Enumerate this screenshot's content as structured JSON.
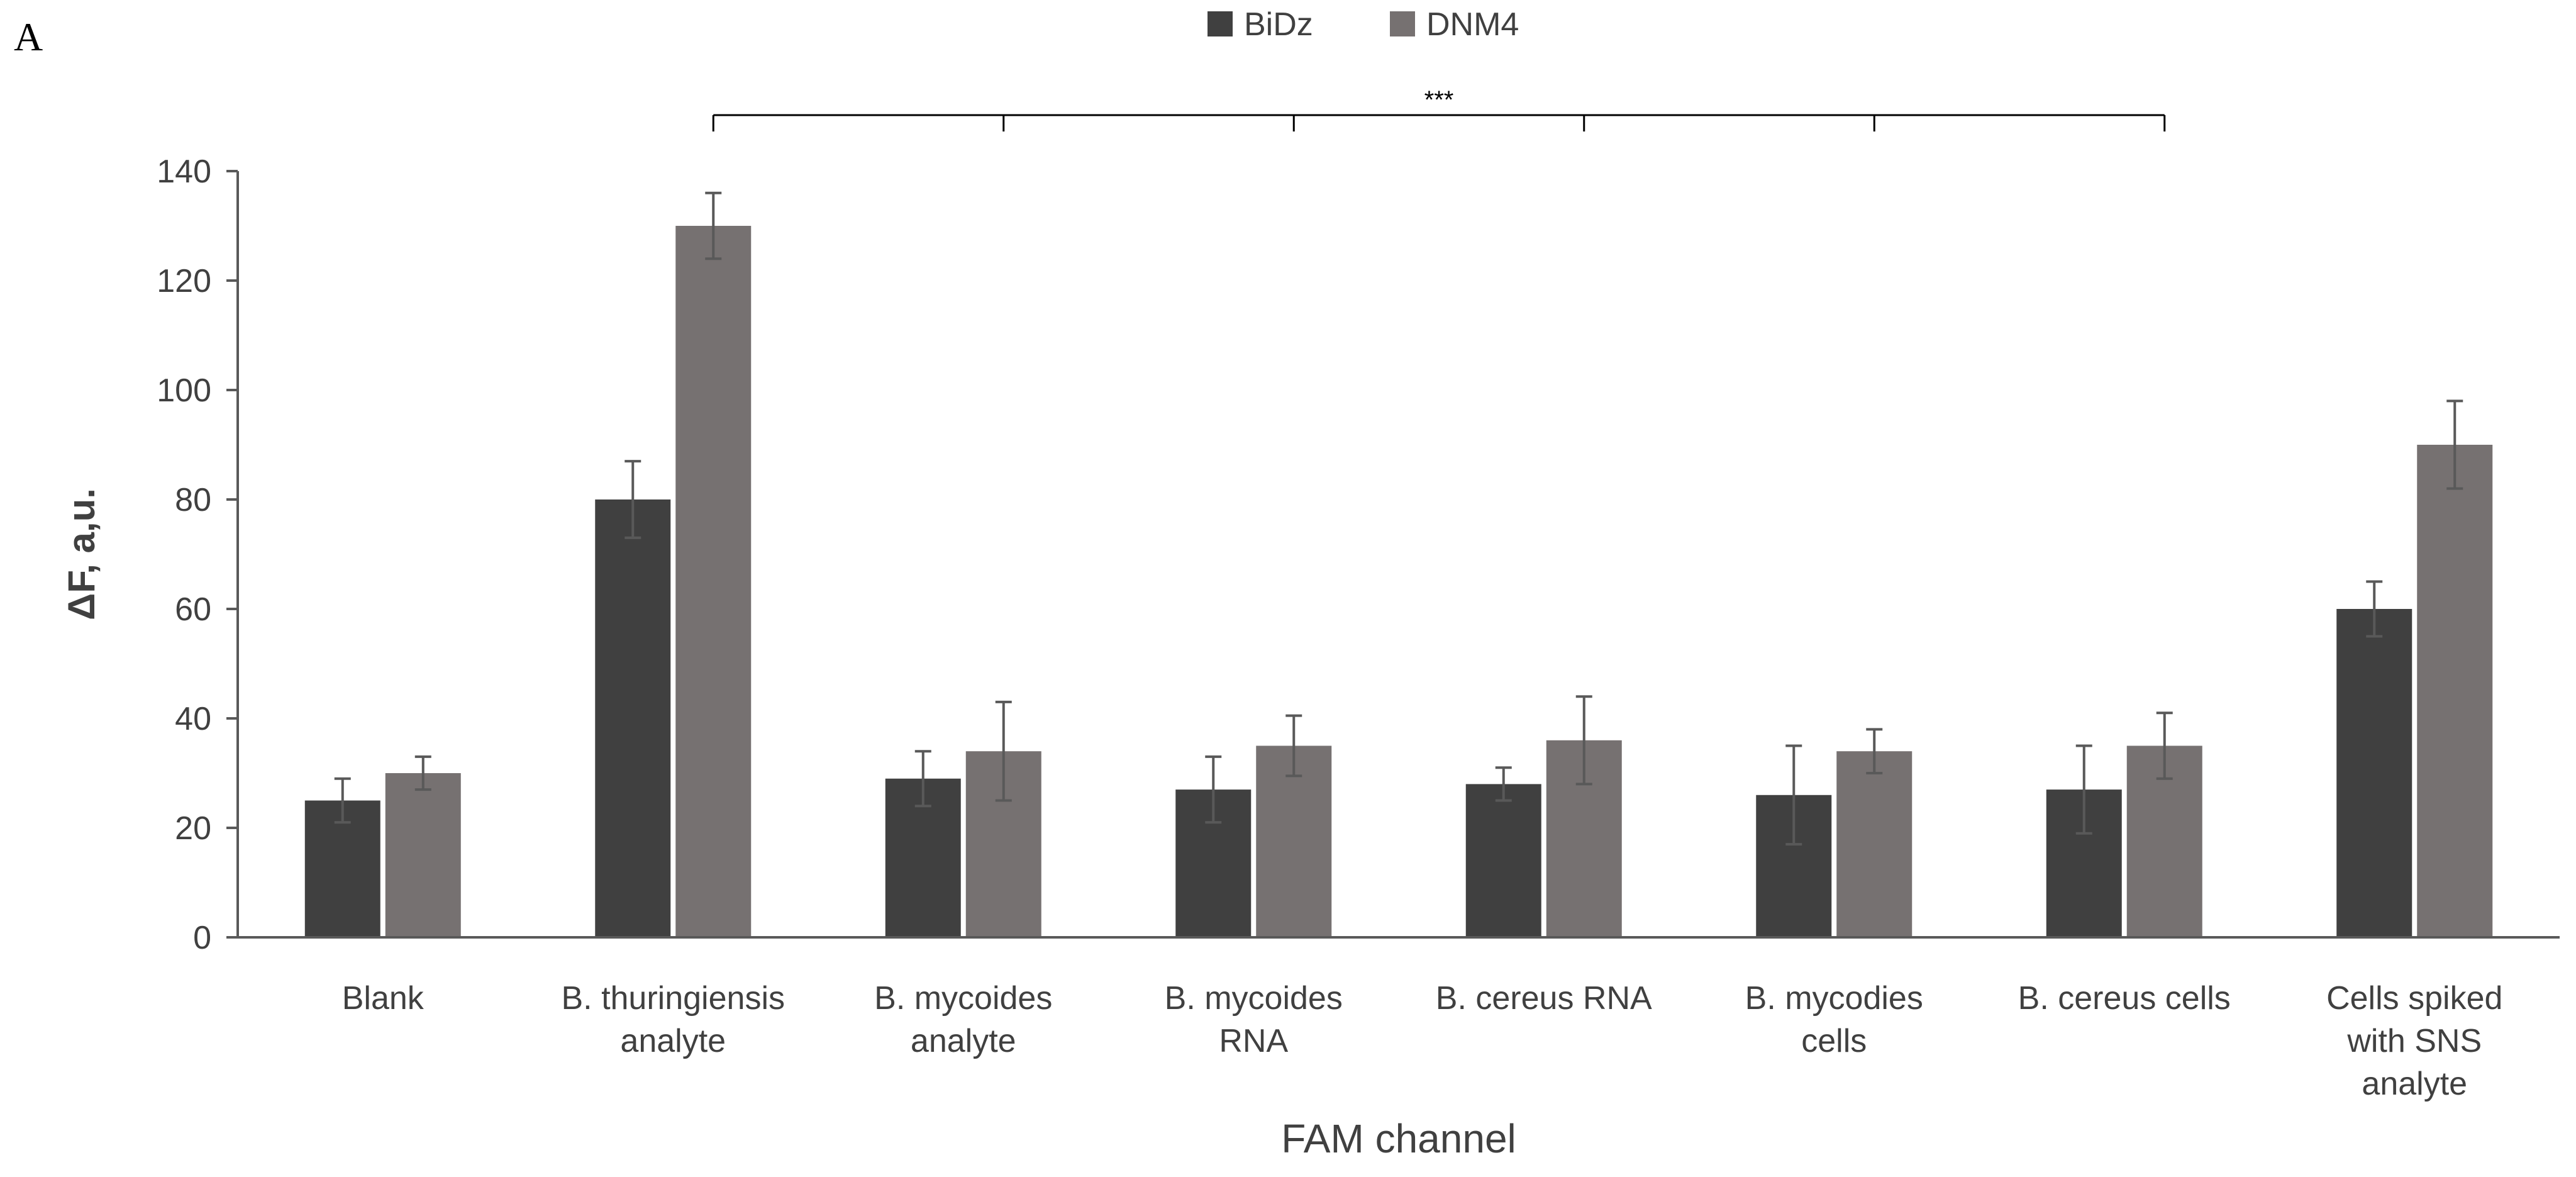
{
  "chart_data": {
    "type": "bar",
    "panel_label": "A",
    "title": "",
    "xlabel": "FAM channel",
    "ylabel": "ΔF, a,u.",
    "ylim": [
      0,
      140
    ],
    "yticks": [
      0,
      20,
      40,
      60,
      80,
      100,
      120,
      140
    ],
    "grid": false,
    "legend_position": "top-center",
    "categories": [
      [
        "Blank"
      ],
      [
        "B. thuringiensis",
        "analyte"
      ],
      [
        "B. mycoides",
        "analyte"
      ],
      [
        "B. mycoides",
        "RNA"
      ],
      [
        "B. cereus RNA"
      ],
      [
        "B. mycodies",
        "cells"
      ],
      [
        "B. cereus cells"
      ],
      [
        "Cells spiked",
        "with SNS",
        "analyte"
      ]
    ],
    "series": [
      {
        "name": "BiDz",
        "color": "#404040",
        "values": [
          25,
          80,
          29,
          27,
          28,
          26,
          27,
          60
        ],
        "errors": [
          4,
          7,
          5,
          6,
          3,
          9,
          8,
          5
        ]
      },
      {
        "name": "DNM4",
        "color": "#767171",
        "values": [
          30,
          130,
          34,
          35,
          36,
          34,
          35,
          90
        ],
        "errors": [
          3,
          6,
          9,
          5.5,
          8,
          4,
          6,
          8
        ]
      }
    ],
    "significance": {
      "label": "***",
      "from_category": 1,
      "to_category": 6,
      "marked_categories": [
        1,
        2,
        3,
        4,
        5,
        6
      ]
    },
    "error_bar_color": "#595959",
    "axis_color": "#595959",
    "text_color": "#404040"
  }
}
